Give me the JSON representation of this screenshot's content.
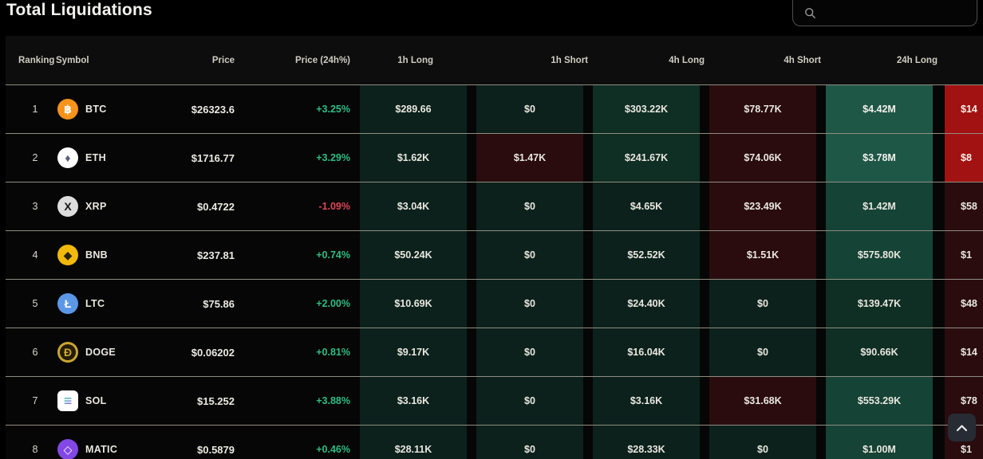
{
  "page": {
    "title": "Total Liquidations"
  },
  "search": {
    "value": "",
    "placeholder": ""
  },
  "colors": {
    "positive": "#2ebd85",
    "negative": "#df4557",
    "heat_green_bright": "#1f5747",
    "heat_green_mid": "#154335",
    "heat_green_low": "#0f2e24",
    "heat_green_zero": "#0c211c",
    "heat_red_low": "#2a0c0f",
    "heat_red_bright": "#a31212"
  },
  "table": {
    "headers": {
      "ranking": "Ranking",
      "symbol": "Symbol",
      "price": "Price",
      "change": "Price (24h%)",
      "h1long": "1h Long",
      "h1short": "1h Short",
      "h4long": "4h Long",
      "h4short": "4h Short",
      "h24long": "24h Long"
    },
    "rows": [
      {
        "rank": "1",
        "symbol": "BTC",
        "icon": {
          "name": "btc-coin-icon",
          "glyph": "฿",
          "bg": "#f7931a",
          "fg": "#ffffff",
          "shape": "circle"
        },
        "price": "$26323.6",
        "change": "+3.25%",
        "dir": "up",
        "cells": [
          {
            "v": "$289.66",
            "h": "g0"
          },
          {
            "v": "$0",
            "h": "g0"
          },
          {
            "v": "$303.22K",
            "h": "g1"
          },
          {
            "v": "$78.77K",
            "h": "r1"
          },
          {
            "v": "$4.42M",
            "h": "g3"
          },
          {
            "v": "$14",
            "h": "r3"
          }
        ]
      },
      {
        "rank": "2",
        "symbol": "ETH",
        "icon": {
          "name": "eth-coin-icon",
          "glyph": "♦",
          "bg": "#ffffff",
          "fg": "#5a6078",
          "shape": "circle"
        },
        "price": "$1716.77",
        "change": "+3.29%",
        "dir": "up",
        "cells": [
          {
            "v": "$1.62K",
            "h": "g0"
          },
          {
            "v": "$1.47K",
            "h": "r1"
          },
          {
            "v": "$241.67K",
            "h": "g1"
          },
          {
            "v": "$74.06K",
            "h": "r1"
          },
          {
            "v": "$3.78M",
            "h": "g3"
          },
          {
            "v": "$8",
            "h": "r3"
          }
        ]
      },
      {
        "rank": "3",
        "symbol": "XRP",
        "icon": {
          "name": "xrp-coin-icon",
          "glyph": "X",
          "bg": "#dddddd",
          "fg": "#17181a",
          "shape": "circle"
        },
        "price": "$0.4722",
        "change": "-1.09%",
        "dir": "down",
        "cells": [
          {
            "v": "$3.04K",
            "h": "g0"
          },
          {
            "v": "$0",
            "h": "g0"
          },
          {
            "v": "$4.65K",
            "h": "g0"
          },
          {
            "v": "$23.49K",
            "h": "r1"
          },
          {
            "v": "$1.42M",
            "h": "g2"
          },
          {
            "v": "$58",
            "h": "r1"
          }
        ]
      },
      {
        "rank": "4",
        "symbol": "BNB",
        "icon": {
          "name": "bnb-coin-icon",
          "glyph": "◆",
          "bg": "#f0b90b",
          "fg": "#2a2303",
          "shape": "circle"
        },
        "price": "$237.81",
        "change": "+0.74%",
        "dir": "up",
        "cells": [
          {
            "v": "$50.24K",
            "h": "g0"
          },
          {
            "v": "$0",
            "h": "g0"
          },
          {
            "v": "$52.52K",
            "h": "g0"
          },
          {
            "v": "$1.51K",
            "h": "r1"
          },
          {
            "v": "$575.80K",
            "h": "g2"
          },
          {
            "v": "$1",
            "h": "r1"
          }
        ]
      },
      {
        "rank": "5",
        "symbol": "LTC",
        "icon": {
          "name": "ltc-coin-icon",
          "glyph": "Ł",
          "bg": "#5b97e6",
          "fg": "#ffffff",
          "shape": "circle"
        },
        "price": "$75.86",
        "change": "+2.00%",
        "dir": "up",
        "cells": [
          {
            "v": "$10.69K",
            "h": "g0"
          },
          {
            "v": "$0",
            "h": "g0"
          },
          {
            "v": "$24.40K",
            "h": "g0"
          },
          {
            "v": "$0",
            "h": "g0"
          },
          {
            "v": "$139.47K",
            "h": "g1"
          },
          {
            "v": "$48",
            "h": "r1"
          }
        ]
      },
      {
        "rank": "6",
        "symbol": "DOGE",
        "icon": {
          "name": "doge-coin-icon",
          "glyph": "Ð",
          "bg": "#241c04",
          "fg": "#c9a632",
          "shape": "circle",
          "ring": "#c9a632"
        },
        "price": "$0.06202",
        "change": "+0.81%",
        "dir": "up",
        "cells": [
          {
            "v": "$9.17K",
            "h": "g0"
          },
          {
            "v": "$0",
            "h": "g0"
          },
          {
            "v": "$16.04K",
            "h": "g0"
          },
          {
            "v": "$0",
            "h": "g0"
          },
          {
            "v": "$90.66K",
            "h": "g1"
          },
          {
            "v": "$14",
            "h": "r1"
          }
        ]
      },
      {
        "rank": "7",
        "symbol": "SOL",
        "icon": {
          "name": "sol-coin-icon",
          "glyph": "≡",
          "bg": "#ffffff",
          "fg": "gradient",
          "shape": "square"
        },
        "price": "$15.252",
        "change": "+3.88%",
        "dir": "up",
        "cells": [
          {
            "v": "$3.16K",
            "h": "g0"
          },
          {
            "v": "$0",
            "h": "g0"
          },
          {
            "v": "$3.16K",
            "h": "g0"
          },
          {
            "v": "$31.68K",
            "h": "r1"
          },
          {
            "v": "$553.29K",
            "h": "g2"
          },
          {
            "v": "$78",
            "h": "r1"
          }
        ]
      },
      {
        "rank": "8",
        "symbol": "MATIC",
        "icon": {
          "name": "matic-coin-icon",
          "glyph": "◇",
          "bg": "#8247e5",
          "fg": "#ffffff",
          "shape": "circle"
        },
        "price": "$0.5879",
        "change": "+0.46%",
        "dir": "up",
        "cells": [
          {
            "v": "$28.11K",
            "h": "g0"
          },
          {
            "v": "$0",
            "h": "g0"
          },
          {
            "v": "$28.33K",
            "h": "g0"
          },
          {
            "v": "$0",
            "h": "g0"
          },
          {
            "v": "$1.00M",
            "h": "g2"
          },
          {
            "v": "$1",
            "h": "r1"
          }
        ]
      }
    ]
  },
  "scroll_top": {
    "icon": "chevron-up-icon"
  }
}
